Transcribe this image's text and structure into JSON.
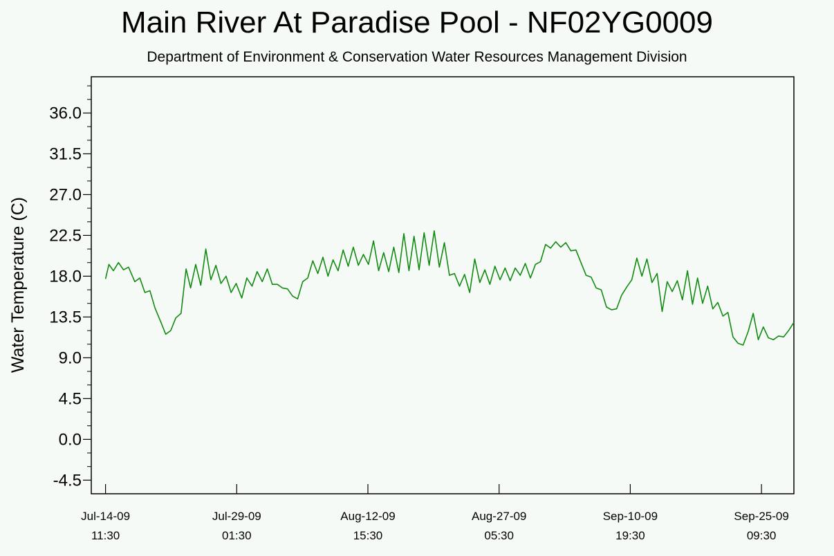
{
  "header": {
    "title": "Main River At Paradise Pool - NF02YG0009",
    "subtitle": "Department of Environment & Conservation Water Resources Management Division"
  },
  "chart_data": {
    "type": "line",
    "title": "Main River At Paradise Pool - NF02YG0009",
    "subtitle": "Department of Environment & Conservation Water Resources Management Division",
    "xlabel": "",
    "ylabel": "Water Temperature (C)",
    "ylim": [
      -6.0,
      40.0
    ],
    "xlim": [
      "2009-07-12 21:30",
      "2009-09-29 00:00"
    ],
    "grid": false,
    "line_color": "#118a11",
    "plot_background": "#f6faf6",
    "yticks": [
      "-4.5",
      "0.0",
      "4.5",
      "9.0",
      "13.5",
      "18.0",
      "22.5",
      "27.0",
      "31.5",
      "36.0"
    ],
    "xticks": [
      {
        "date": "2009-07-14 11:30",
        "line1": "Jul-14-09",
        "line2": "11:30"
      },
      {
        "date": "2009-07-29 01:30",
        "line1": "Jul-29-09",
        "line2": "01:30"
      },
      {
        "date": "2009-08-12 15:30",
        "line1": "Aug-12-09",
        "line2": "15:30"
      },
      {
        "date": "2009-08-27 05:30",
        "line1": "Aug-27-09",
        "line2": "05:30"
      },
      {
        "date": "2009-09-10 19:30",
        "line1": "Sep-10-09",
        "line2": "19:30"
      },
      {
        "date": "2009-09-25 09:30",
        "line1": "Sep-25-09",
        "line2": "09:30"
      }
    ],
    "series": [
      {
        "values": [
          [
            "2009-07-14 11:30",
            17.7
          ],
          [
            "2009-07-14 20:30",
            19.3
          ],
          [
            "2009-07-15 08:30",
            18.6
          ],
          [
            "2009-07-15 22:00",
            19.5
          ],
          [
            "2009-07-16 11:30",
            18.7
          ],
          [
            "2009-07-17 01:00",
            19.0
          ],
          [
            "2009-07-17 17:30",
            17.4
          ],
          [
            "2009-07-18 07:00",
            17.8
          ],
          [
            "2009-07-18 20:30",
            16.2
          ],
          [
            "2009-07-19 10:00",
            16.4
          ],
          [
            "2009-07-19 23:30",
            14.5
          ],
          [
            "2009-07-20 17:30",
            12.7
          ],
          [
            "2009-07-21 04:00",
            11.6
          ],
          [
            "2009-07-21 17:30",
            12.0
          ],
          [
            "2009-07-22 07:00",
            13.4
          ],
          [
            "2009-07-22 21:00",
            13.9
          ],
          [
            "2009-07-23 10:30",
            18.8
          ],
          [
            "2009-07-23 22:30",
            16.7
          ],
          [
            "2009-07-24 12:00",
            19.3
          ],
          [
            "2009-07-25 01:30",
            17.0
          ],
          [
            "2009-07-25 15:00",
            21.0
          ],
          [
            "2009-07-26 04:30",
            17.6
          ],
          [
            "2009-07-26 18:00",
            19.2
          ],
          [
            "2009-07-27 07:30",
            17.2
          ],
          [
            "2009-07-27 21:00",
            18.0
          ],
          [
            "2009-07-28 10:30",
            16.2
          ],
          [
            "2009-07-29 00:00",
            17.2
          ],
          [
            "2009-07-29 15:00",
            15.6
          ],
          [
            "2009-07-30 04:30",
            17.8
          ],
          [
            "2009-07-30 18:30",
            16.9
          ],
          [
            "2009-07-31 08:00",
            18.5
          ],
          [
            "2009-07-31 21:30",
            17.4
          ],
          [
            "2009-08-01 11:00",
            18.8
          ],
          [
            "2009-08-02 00:30",
            17.1
          ],
          [
            "2009-08-02 14:00",
            17.1
          ],
          [
            "2009-08-03 03:30",
            16.7
          ],
          [
            "2009-08-03 17:00",
            16.6
          ],
          [
            "2009-08-04 06:30",
            15.8
          ],
          [
            "2009-08-04 20:00",
            15.5
          ],
          [
            "2009-08-05 09:30",
            17.4
          ],
          [
            "2009-08-05 23:00",
            17.8
          ],
          [
            "2009-08-06 12:30",
            19.7
          ],
          [
            "2009-08-07 02:00",
            18.3
          ],
          [
            "2009-08-07 15:30",
            20.1
          ],
          [
            "2009-08-08 05:00",
            18.0
          ],
          [
            "2009-08-08 18:30",
            19.8
          ],
          [
            "2009-08-09 08:00",
            18.6
          ],
          [
            "2009-08-09 21:30",
            20.9
          ],
          [
            "2009-08-10 11:00",
            19.1
          ],
          [
            "2009-08-11 00:30",
            21.2
          ],
          [
            "2009-08-11 14:00",
            19.2
          ],
          [
            "2009-08-12 03:30",
            20.4
          ],
          [
            "2009-08-12 17:00",
            19.3
          ],
          [
            "2009-08-13 06:30",
            21.9
          ],
          [
            "2009-08-13 20:00",
            18.6
          ],
          [
            "2009-08-14 09:30",
            20.6
          ],
          [
            "2009-08-14 23:00",
            18.5
          ],
          [
            "2009-08-15 12:30",
            21.2
          ],
          [
            "2009-08-16 02:00",
            18.4
          ],
          [
            "2009-08-16 15:30",
            22.7
          ],
          [
            "2009-08-17 05:00",
            18.6
          ],
          [
            "2009-08-17 18:30",
            22.4
          ],
          [
            "2009-08-18 08:00",
            18.7
          ],
          [
            "2009-08-18 21:30",
            22.8
          ],
          [
            "2009-08-19 11:00",
            19.2
          ],
          [
            "2009-08-20 00:30",
            23.0
          ],
          [
            "2009-08-20 14:00",
            19.0
          ],
          [
            "2009-08-21 03:30",
            21.7
          ],
          [
            "2009-08-21 17:00",
            18.1
          ],
          [
            "2009-08-22 06:30",
            18.3
          ],
          [
            "2009-08-22 20:00",
            16.9
          ],
          [
            "2009-08-23 09:30",
            18.2
          ],
          [
            "2009-08-23 23:00",
            16.2
          ],
          [
            "2009-08-24 12:30",
            19.9
          ],
          [
            "2009-08-25 02:00",
            17.3
          ],
          [
            "2009-08-25 15:30",
            18.7
          ],
          [
            "2009-08-26 05:00",
            17.1
          ],
          [
            "2009-08-26 18:30",
            19.1
          ],
          [
            "2009-08-27 08:00",
            17.6
          ],
          [
            "2009-08-27 21:30",
            18.9
          ],
          [
            "2009-08-28 11:00",
            17.5
          ],
          [
            "2009-08-29 00:30",
            18.9
          ],
          [
            "2009-08-29 14:00",
            18.1
          ],
          [
            "2009-08-30 03:30",
            19.4
          ],
          [
            "2009-08-30 17:00",
            17.8
          ],
          [
            "2009-08-31 06:30",
            19.3
          ],
          [
            "2009-08-31 20:00",
            19.6
          ],
          [
            "2009-09-01 09:30",
            21.5
          ],
          [
            "2009-09-01 23:00",
            21.1
          ],
          [
            "2009-09-02 12:30",
            21.8
          ],
          [
            "2009-09-03 02:00",
            21.2
          ],
          [
            "2009-09-03 15:30",
            21.7
          ],
          [
            "2009-09-04 05:00",
            20.8
          ],
          [
            "2009-09-04 18:30",
            20.9
          ],
          [
            "2009-09-05 08:00",
            19.5
          ],
          [
            "2009-09-05 21:30",
            18.1
          ],
          [
            "2009-09-06 11:00",
            17.9
          ],
          [
            "2009-09-07 00:30",
            16.7
          ],
          [
            "2009-09-07 14:00",
            16.5
          ],
          [
            "2009-09-08 04:00",
            14.6
          ],
          [
            "2009-09-08 17:30",
            14.3
          ],
          [
            "2009-09-09 07:00",
            14.4
          ],
          [
            "2009-09-09 20:30",
            15.9
          ],
          [
            "2009-09-10 10:00",
            16.8
          ],
          [
            "2009-09-10 23:30",
            17.6
          ],
          [
            "2009-09-11 13:00",
            20.0
          ],
          [
            "2009-09-12 02:30",
            18.0
          ],
          [
            "2009-09-12 16:00",
            19.9
          ],
          [
            "2009-09-13 05:30",
            17.3
          ],
          [
            "2009-09-13 19:00",
            18.3
          ],
          [
            "2009-09-14 08:30",
            14.1
          ],
          [
            "2009-09-14 22:00",
            17.4
          ],
          [
            "2009-09-15 11:30",
            16.3
          ],
          [
            "2009-09-16 01:00",
            17.5
          ],
          [
            "2009-09-16 14:30",
            15.4
          ],
          [
            "2009-09-17 04:00",
            18.6
          ],
          [
            "2009-09-17 17:30",
            14.9
          ],
          [
            "2009-09-18 07:00",
            17.8
          ],
          [
            "2009-09-18 20:30",
            15.0
          ],
          [
            "2009-09-19 10:00",
            16.9
          ],
          [
            "2009-09-19 23:30",
            14.4
          ],
          [
            "2009-09-20 13:00",
            15.1
          ],
          [
            "2009-09-21 02:30",
            13.6
          ],
          [
            "2009-09-21 16:00",
            14.0
          ],
          [
            "2009-09-22 05:30",
            11.3
          ],
          [
            "2009-09-22 19:00",
            10.6
          ],
          [
            "2009-09-23 08:30",
            10.4
          ],
          [
            "2009-09-23 22:00",
            11.9
          ],
          [
            "2009-09-24 11:30",
            13.9
          ],
          [
            "2009-09-25 01:00",
            11.0
          ],
          [
            "2009-09-25 14:30",
            12.4
          ],
          [
            "2009-09-26 04:00",
            11.2
          ],
          [
            "2009-09-26 17:30",
            11.0
          ],
          [
            "2009-09-27 07:00",
            11.4
          ],
          [
            "2009-09-27 20:30",
            11.3
          ],
          [
            "2009-09-28 10:00",
            12.0
          ],
          [
            "2009-09-29 00:00",
            12.9
          ]
        ]
      }
    ]
  }
}
